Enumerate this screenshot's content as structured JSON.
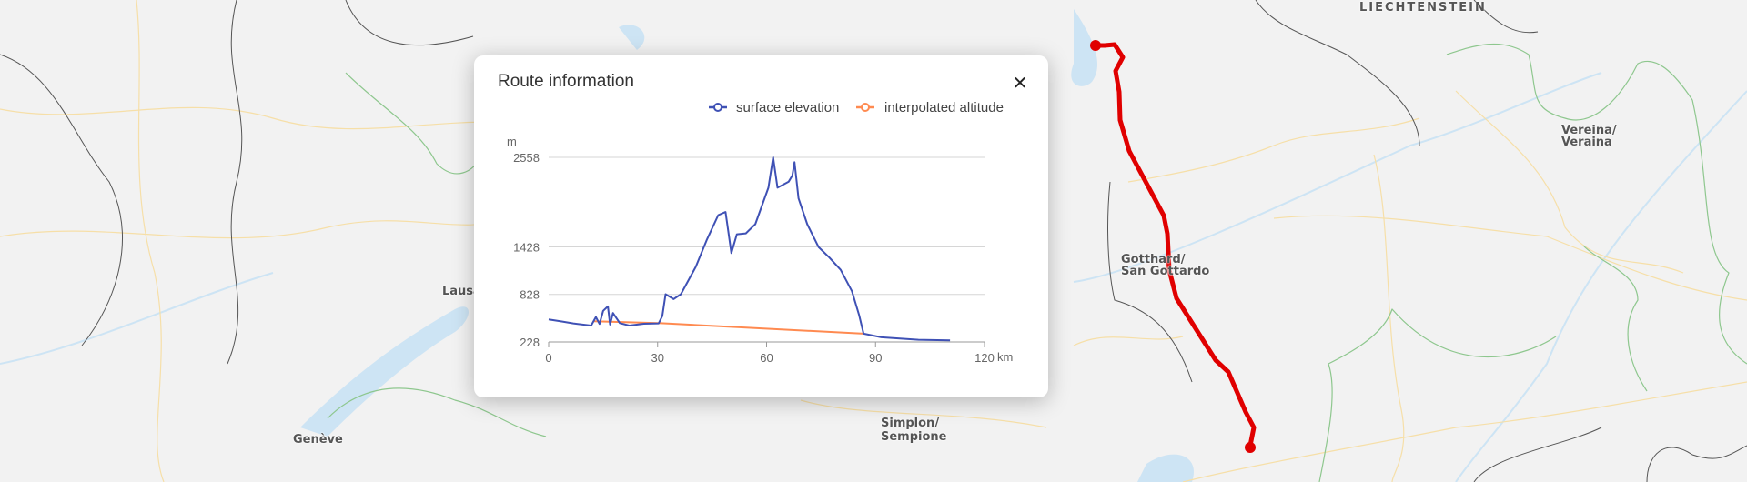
{
  "map": {
    "labels": {
      "lausanne": "Lausanne",
      "geneve": "Genève",
      "simplon": "Simplon/",
      "sempione": "Sempione",
      "gotthard": "Gotthard/",
      "san_gottardo": "San Gottardo",
      "vereina": "Vereina/",
      "veraina": "Veraina",
      "liechtenstein": "LIECHTENSTEIN"
    },
    "route_color": "#e00000"
  },
  "dialog": {
    "title": "Route information",
    "close_icon": "close-icon"
  },
  "chart_data": {
    "type": "line",
    "xlabel": "km",
    "ylabel": "m",
    "xlim": [
      0,
      120
    ],
    "ylim": [
      228,
      2558
    ],
    "x_ticks": [
      "0",
      "30",
      "60",
      "90",
      "120"
    ],
    "y_ticks": [
      "228",
      "828",
      "1428",
      "2558"
    ],
    "grid": true,
    "legend": "top-right",
    "series": [
      {
        "name": "surface elevation",
        "color": "#3f51b5",
        "points": [
          [
            0,
            512
          ],
          [
            3.8,
            485
          ],
          [
            6.8,
            462
          ],
          [
            11.7,
            435
          ],
          [
            13,
            543
          ],
          [
            14,
            455
          ],
          [
            15,
            620
          ],
          [
            16.3,
            677
          ],
          [
            16.9,
            447
          ],
          [
            17.7,
            593
          ],
          [
            19.6,
            466
          ],
          [
            22.2,
            435
          ],
          [
            26.2,
            458
          ],
          [
            30.3,
            462
          ],
          [
            31.3,
            554
          ],
          [
            32.2,
            831
          ],
          [
            34.4,
            769
          ],
          [
            36.4,
            831
          ],
          [
            40.5,
            1176
          ],
          [
            43.6,
            1522
          ],
          [
            46.7,
            1829
          ],
          [
            48.7,
            1868
          ],
          [
            50.3,
            1349
          ],
          [
            51.8,
            1587
          ],
          [
            54.3,
            1599
          ],
          [
            56.9,
            1714
          ],
          [
            60.5,
            2175
          ],
          [
            61.8,
            2558
          ],
          [
            63.0,
            2175
          ],
          [
            66.1,
            2252
          ],
          [
            67.1,
            2328
          ],
          [
            67.7,
            2497
          ],
          [
            68.8,
            2040
          ],
          [
            71.2,
            1714
          ],
          [
            74.3,
            1426
          ],
          [
            77.3,
            1292
          ],
          [
            80.4,
            1138
          ],
          [
            83.5,
            869
          ],
          [
            85.5,
            562
          ],
          [
            86.7,
            332
          ],
          [
            91.6,
            286
          ],
          [
            101.8,
            255
          ],
          [
            110.5,
            247
          ]
        ]
      },
      {
        "name": "interpolated altitude",
        "color": "#ff8a50",
        "points": [
          [
            12.5,
            488
          ],
          [
            31,
            465
          ],
          [
            86.7,
            332
          ]
        ]
      }
    ]
  }
}
